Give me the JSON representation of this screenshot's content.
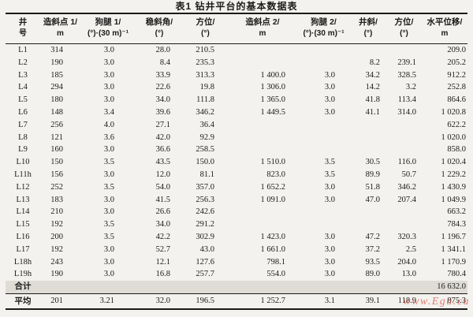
{
  "title": "表1  钻井平台的基本数据表",
  "watermark": {
    "text": "www.Egu.ca"
  },
  "colors": {
    "paper_bg": "#f3f2ee",
    "text": "#1b1b1b",
    "rule": "#1a1a1a",
    "sum_row_bg": "#dedcd5",
    "watermark_red": "#d23e34"
  },
  "table": {
    "columns": [
      {
        "id": "well-number",
        "line1": "井",
        "line2": "号"
      },
      {
        "id": "kickoff-1",
        "line1": "造斜点 1/",
        "line2": "m"
      },
      {
        "id": "dogleg-1",
        "line1": "狗腿 1/",
        "line2": "(°)·(30 m)⁻¹"
      },
      {
        "id": "hold-angle",
        "line1": "稳斜角/",
        "line2": "(°)"
      },
      {
        "id": "azimuth-1",
        "line1": "方位/",
        "line2": "(°)"
      },
      {
        "id": "kickoff-2",
        "line1": "造斜点 2/",
        "line2": "m"
      },
      {
        "id": "dogleg-2",
        "line1": "狗腿 2/",
        "line2": "(°)·(30 m)⁻¹"
      },
      {
        "id": "inclination",
        "line1": "井斜/",
        "line2": "(°)"
      },
      {
        "id": "azimuth-2",
        "line1": "方位/",
        "line2": "(°)"
      },
      {
        "id": "horiz-displ",
        "line1": "水平位移/",
        "line2": "m"
      }
    ],
    "rows": [
      [
        "L1",
        "314",
        "3.0",
        "28.0",
        "210.5",
        "",
        "",
        "",
        "",
        "209.0"
      ],
      [
        "L2",
        "190",
        "3.0",
        "8.4",
        "235.3",
        "",
        "",
        "8.2",
        "239.1",
        "205.2"
      ],
      [
        "L3",
        "185",
        "3.0",
        "33.9",
        "313.3",
        "1 400.0",
        "3.0",
        "34.2",
        "328.5",
        "912.2"
      ],
      [
        "L4",
        "294",
        "3.0",
        "22.6",
        "19.8",
        "1 306.0",
        "3.0",
        "14.2",
        "3.2",
        "252.8"
      ],
      [
        "L5",
        "180",
        "3.0",
        "34.0",
        "111.8",
        "1 365.0",
        "3.0",
        "41.8",
        "113.4",
        "864.6"
      ],
      [
        "L6",
        "148",
        "3.4",
        "39.6",
        "346.2",
        "1 449.5",
        "3.0",
        "41.1",
        "314.0",
        "1 020.8"
      ],
      [
        "L7",
        "256",
        "4.0",
        "27.1",
        "36.4",
        "",
        "",
        "",
        "",
        "622.2"
      ],
      [
        "L8",
        "121",
        "3.6",
        "42.0",
        "92.9",
        "",
        "",
        "",
        "",
        "1 020.0"
      ],
      [
        "L9",
        "160",
        "3.0",
        "36.6",
        "258.5",
        "",
        "",
        "",
        "",
        "858.0"
      ],
      [
        "L10",
        "150",
        "3.5",
        "43.5",
        "150.0",
        "1 510.0",
        "3.5",
        "30.5",
        "116.0",
        "1 020.4"
      ],
      [
        "L11h",
        "156",
        "3.0",
        "12.0",
        "81.1",
        "823.0",
        "3.5",
        "89.9",
        "50.7",
        "1 229.2"
      ],
      [
        "L12",
        "252",
        "3.5",
        "54.0",
        "357.0",
        "1 652.2",
        "3.0",
        "51.8",
        "346.2",
        "1 430.9"
      ],
      [
        "L13",
        "183",
        "3.0",
        "41.5",
        "256.3",
        "1 091.0",
        "3.0",
        "47.0",
        "207.4",
        "1 049.9"
      ],
      [
        "L14",
        "210",
        "3.0",
        "26.6",
        "242.6",
        "",
        "",
        "",
        "",
        "663.2"
      ],
      [
        "L15",
        "192",
        "3.5",
        "34.0",
        "291.2",
        "",
        "",
        "",
        "",
        "784.3"
      ],
      [
        "L16",
        "200",
        "3.5",
        "42.2",
        "302.9",
        "1 423.0",
        "3.0",
        "47.2",
        "320.3",
        "1 196.7"
      ],
      [
        "L17",
        "192",
        "3.0",
        "52.7",
        "43.0",
        "1 661.0",
        "3.0",
        "37.2",
        "2.5",
        "1 341.1"
      ],
      [
        "L18h",
        "243",
        "3.0",
        "12.1",
        "127.6",
        "798.1",
        "3.0",
        "93.5",
        "204.0",
        "1 170.9"
      ],
      [
        "L19h",
        "190",
        "3.0",
        "16.8",
        "257.7",
        "554.0",
        "3.0",
        "89.0",
        "13.0",
        "780.4"
      ]
    ],
    "sum_row": [
      "合计",
      "",
      "",
      "",
      "",
      "",
      "",
      "",
      "",
      "16 632.0"
    ],
    "avg_row": [
      "平均",
      "201",
      "3.21",
      "32.0",
      "196.5",
      "1 252.7",
      "3.1",
      "39.1",
      "118.9",
      "875.3"
    ]
  }
}
